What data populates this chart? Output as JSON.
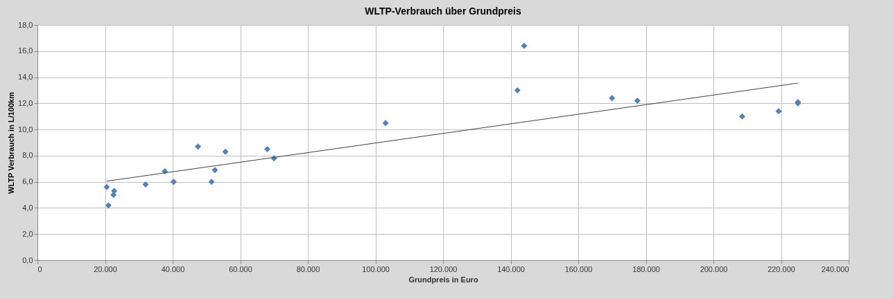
{
  "chart_data": {
    "type": "scatter",
    "title": "WLTP-Verbrauch über Grundpreis",
    "xlabel": "Grundpreis in Euro",
    "ylabel": "WLTP Verbrauch in L/100km",
    "series": [
      {
        "color": "#4f81bd",
        "marker": "diamond",
        "x": [
          20500,
          21000,
          22500,
          22700,
          32000,
          37700,
          40300,
          47500,
          51500,
          52500,
          55600,
          68000,
          70000,
          103000,
          142000,
          144000,
          170000,
          177500,
          208500,
          219300,
          225000,
          225000
        ],
        "values": [
          5.6,
          4.2,
          5.0,
          5.3,
          5.8,
          6.8,
          6.0,
          8.7,
          6.0,
          6.9,
          8.3,
          8.5,
          7.8,
          10.5,
          13.0,
          16.4,
          12.4,
          12.2,
          11.0,
          11.4,
          12.0,
          12.1
        ]
      },
      {
        "type": "line",
        "color": "#404040",
        "marker": "none",
        "x": [
          20500,
          225000
        ],
        "values": [
          6.05,
          13.55
        ]
      }
    ],
    "xlim": [
      0,
      240000
    ],
    "xticks": [
      {
        "value": 0,
        "label": "0"
      },
      {
        "value": 20000,
        "label": "20.000"
      },
      {
        "value": 40000,
        "label": "40.000"
      },
      {
        "value": 60000,
        "label": "60.000"
      },
      {
        "value": 80000,
        "label": "80.000"
      },
      {
        "value": 100000,
        "label": "100.000"
      },
      {
        "value": 120000,
        "label": "120.000"
      },
      {
        "value": 140000,
        "label": "140.000"
      },
      {
        "value": 160000,
        "label": "160.000"
      },
      {
        "value": 180000,
        "label": "180.000"
      },
      {
        "value": 200000,
        "label": "200.000"
      },
      {
        "value": 220000,
        "label": "220.000"
      },
      {
        "value": 240000,
        "label": "240.000"
      }
    ],
    "ylim": [
      0,
      18
    ],
    "yticks": [
      {
        "value": 0,
        "label": "0,0"
      },
      {
        "value": 2,
        "label": "2,0"
      },
      {
        "value": 4,
        "label": "4,0"
      },
      {
        "value": 6,
        "label": "6,0"
      },
      {
        "value": 8,
        "label": "8,0"
      },
      {
        "value": 10,
        "label": "10,0"
      },
      {
        "value": 12,
        "label": "12,0"
      },
      {
        "value": 14,
        "label": "14,0"
      },
      {
        "value": 16,
        "label": "16,0"
      },
      {
        "value": 18,
        "label": "18,0"
      }
    ],
    "grid": true
  }
}
